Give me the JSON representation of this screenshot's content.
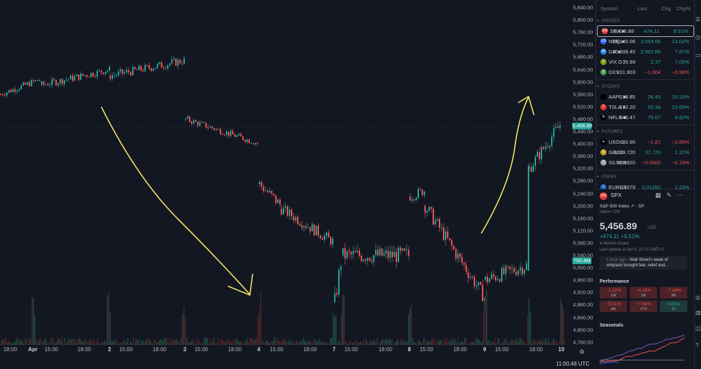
{
  "chart": {
    "x_ticks": [
      {
        "label": "18:00",
        "bold": false
      },
      {
        "label": "Apr",
        "bold": true
      },
      {
        "label": "15:00",
        "bold": false
      },
      {
        "label": "18:00",
        "bold": false
      },
      {
        "label": "2",
        "bold": true
      },
      {
        "label": "15:00",
        "bold": false
      },
      {
        "label": "18:00",
        "bold": false
      },
      {
        "label": "3",
        "bold": true
      },
      {
        "label": "15:00",
        "bold": false
      },
      {
        "label": "18:00",
        "bold": false
      },
      {
        "label": "4",
        "bold": true
      },
      {
        "label": "15:00",
        "bold": false
      },
      {
        "label": "18:00",
        "bold": false
      },
      {
        "label": "7",
        "bold": true
      },
      {
        "label": "15:00",
        "bold": false
      },
      {
        "label": "18:00",
        "bold": false
      },
      {
        "label": "8",
        "bold": true
      },
      {
        "label": "15:00",
        "bold": false
      },
      {
        "label": "18:00",
        "bold": false
      },
      {
        "label": "9",
        "bold": true
      },
      {
        "label": "15:00",
        "bold": false
      },
      {
        "label": "18:00",
        "bold": false
      },
      {
        "label": "10",
        "bold": true
      }
    ],
    "y_ticks": [
      "5,840.00",
      "5,800.00",
      "5,760.00",
      "5,720.00",
      "5,680.00",
      "5,640.00",
      "5,600.00",
      "5,560.00",
      "5,520.00",
      "5,480.00",
      "5,440.00",
      "5,400.00",
      "5,360.00",
      "5,320.00",
      "5,280.00",
      "5,240.00",
      "5,200.00",
      "5,160.00",
      "5,120.00",
      "5,080.00",
      "5,040.00",
      "5,000.00",
      "4,960.00",
      "4,920.00",
      "4,880.00",
      "4,840.00",
      "4,800.00",
      "4,760.00"
    ],
    "last_price_badge": "5,456.89",
    "volume_badge": "750.4M",
    "clock": "11:00:48 UTC",
    "colors": {
      "up": "#26a69a",
      "down": "#ef5350",
      "annotation": "#f5e663"
    }
  },
  "watchlist": {
    "headers": {
      "symbol": "Symbol",
      "last": "Last",
      "chg": "Chg",
      "pct": "Chg%"
    },
    "sections": [
      {
        "title": "INDICES",
        "rows": [
          {
            "sym": "SPX",
            "mark": "●",
            "last": "5,456.89",
            "chg": "474.11",
            "pct": "9.51%",
            "dir": "pos",
            "logo": "500",
            "logo_color": "#e53935",
            "selected": true
          },
          {
            "sym": "NDQ",
            "mark": "●",
            "last": "19,145.06",
            "chg": "2,054.66",
            "pct": "12.02%",
            "dir": "pos",
            "logo": "100",
            "logo_color": "#2962ff",
            "selected": false
          },
          {
            "sym": "DJI",
            "mark": "●",
            "last": "40,608.45",
            "chg": "2,962.86",
            "pct": "7.87%",
            "dir": "pos",
            "logo": "30",
            "logo_color": "#1e88e5",
            "selected": false
          },
          {
            "sym": "VIX",
            "mark": "D",
            "last": "35.99",
            "chg": "2.37",
            "pct": "7.05%",
            "dir": "pos",
            "logo": "V",
            "logo_color": "#8d9a1b",
            "selected": false
          },
          {
            "sym": "DXY",
            "mark": "",
            "last": "101.903",
            "chg": "−1.004",
            "pct": "−0.98%",
            "dir": "neg",
            "logo": "$",
            "logo_color": "#43a047",
            "selected": false
          }
        ]
      },
      {
        "title": "STOCKS",
        "rows": [
          {
            "sym": "AAPL",
            "mark": "●",
            "last": "198.85",
            "chg": "26.43",
            "pct": "15.33%",
            "dir": "pos",
            "logo": "",
            "logo_color": "#000000",
            "selected": false
          },
          {
            "sym": "TSLA",
            "mark": "●",
            "last": "272.20",
            "chg": "50.34",
            "pct": "22.69%",
            "dir": "pos",
            "logo": "T",
            "logo_color": "#e53935",
            "selected": false
          },
          {
            "sym": "NFLX",
            "mark": "●",
            "last": "945.47",
            "chg": "75.07",
            "pct": "8.62%",
            "dir": "pos",
            "logo": "N",
            "logo_color": "#000000",
            "selected": false
          }
        ]
      },
      {
        "title": "FUTURES",
        "rows": [
          {
            "sym": "USOIL",
            "mark": "",
            "last": "60.90",
            "chg": "−1.81",
            "pct": "−2.89%",
            "dir": "neg",
            "logo": "●",
            "logo_color": "#000000",
            "selected": false
          },
          {
            "sym": "GOLD",
            "mark": "",
            "last": "3,119.720",
            "chg": "37.720",
            "pct": "1.22%",
            "dir": "pos",
            "logo": "G",
            "logo_color": "#c9a227",
            "selected": false
          },
          {
            "sym": "SILVER",
            "mark": "",
            "last": "30.8920",
            "chg": "−0.0600",
            "pct": "−0.19%",
            "dir": "neg",
            "logo": "S",
            "logo_color": "#9e9e9e",
            "selected": false
          }
        ]
      },
      {
        "title": "FOREX",
        "rows": [
          {
            "sym": "EURUS",
            "mark": "",
            "last": "1.1079",
            "chg": "0.01350",
            "pct": "1.23%",
            "dir": "pos",
            "logo": "€",
            "logo_color": "#1565c0",
            "selected": false
          }
        ]
      }
    ]
  },
  "detail": {
    "logo": "500",
    "symbol": "SPX",
    "name": "S&P 500 Index ↗ · SP",
    "kind": "Index • Cfd",
    "price": "5,456.89",
    "currency": "USD",
    "change": "+474.11 +9.51%",
    "status": "● Market closed",
    "last_update": "Last update at Apr 9, 22:01 GMT+2",
    "news_time": "1 hour ago",
    "news_text": "· Wall Street's week of whiplash brought fear, relief and...",
    "performance_title": "Performance",
    "performance": [
      {
        "value": "−2.22%",
        "period": "1W",
        "dir": "neg"
      },
      {
        "value": "−4.36%",
        "period": "1M",
        "dir": "neg"
      },
      {
        "value": "−7.88%",
        "period": "3M",
        "dir": "neg"
      },
      {
        "value": "−5.51%",
        "period": "6M",
        "dir": "neg"
      },
      {
        "value": "−7.56%",
        "period": "YTD",
        "dir": "neg"
      },
      {
        "value": "4.60%",
        "period": "1Y",
        "dir": "pos"
      }
    ],
    "seasonals_title": "Seasonals"
  }
}
